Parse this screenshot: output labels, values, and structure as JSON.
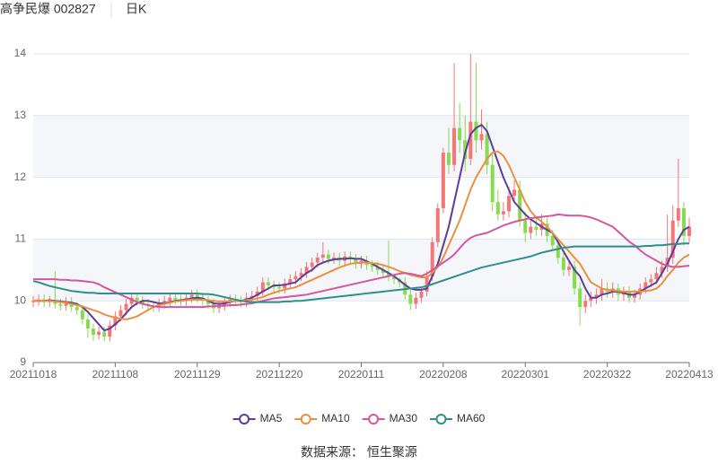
{
  "chart_data": {
    "type": "candlestick",
    "title": "高争民爆 002827",
    "period": "日K",
    "source": "数据来源： 恒生聚源",
    "categories": [
      "20211018",
      null,
      null,
      null,
      null,
      null,
      null,
      null,
      null,
      null,
      null,
      null,
      null,
      null,
      null,
      "20211108",
      null,
      null,
      null,
      null,
      null,
      null,
      null,
      null,
      null,
      null,
      null,
      null,
      null,
      null,
      "20211129",
      null,
      null,
      null,
      null,
      null,
      null,
      null,
      null,
      null,
      null,
      null,
      null,
      null,
      null,
      "20211220",
      null,
      null,
      null,
      null,
      null,
      null,
      null,
      null,
      null,
      null,
      null,
      null,
      null,
      null,
      "20220111",
      null,
      null,
      null,
      null,
      null,
      null,
      null,
      null,
      null,
      null,
      null,
      null,
      null,
      null,
      "20220208",
      null,
      null,
      null,
      null,
      null,
      null,
      null,
      null,
      null,
      null,
      null,
      null,
      null,
      null,
      "20220301",
      null,
      null,
      null,
      null,
      null,
      null,
      null,
      null,
      null,
      null,
      null,
      null,
      null,
      null,
      "20220322",
      null,
      null,
      null,
      null,
      null,
      null,
      null,
      null,
      null,
      null,
      null,
      null,
      null,
      null,
      "20220413"
    ],
    "open": [
      9.98,
      10.0,
      10.02,
      9.98,
      10.0,
      9.95,
      9.92,
      9.98,
      9.9,
      9.85,
      9.7,
      9.55,
      9.45,
      9.5,
      9.42,
      9.6,
      9.75,
      9.85,
      9.95,
      10.05,
      10.0,
      9.95,
      9.92,
      9.9,
      9.95,
      10.0,
      10.05,
      10.02,
      10.0,
      10.05,
      10.1,
      10.05,
      10.0,
      9.95,
      9.88,
      9.92,
      9.98,
      10.02,
      10.0,
      9.98,
      10.05,
      10.08,
      10.15,
      10.3,
      10.25,
      10.22,
      10.2,
      10.28,
      10.35,
      10.4,
      10.45,
      10.55,
      10.62,
      10.7,
      10.75,
      10.68,
      10.7,
      10.65,
      10.72,
      10.68,
      10.6,
      10.65,
      10.58,
      10.55,
      10.5,
      10.45,
      10.4,
      10.35,
      10.3,
      10.1,
      9.95,
      10.05,
      10.15,
      10.4,
      10.95,
      11.5,
      12.4,
      12.2,
      12.8,
      12.6,
      12.3,
      12.9,
      12.6,
      12.7,
      12.2,
      11.6,
      11.4,
      11.45,
      11.7,
      11.8,
      11.3,
      11.1,
      11.2,
      11.15,
      11.25,
      11.05,
      10.9,
      10.7,
      10.5,
      10.55,
      10.2,
      9.9,
      10.0,
      10.05,
      10.1,
      10.2,
      10.15,
      10.2,
      10.1,
      10.15,
      10.05,
      10.1,
      10.2,
      10.3,
      10.35,
      10.45,
      10.55,
      10.7,
      11.3,
      11.5,
      11.05
    ],
    "high": [
      10.08,
      10.1,
      10.1,
      10.08,
      10.48,
      10.03,
      10.06,
      10.06,
      9.98,
      9.93,
      9.78,
      9.63,
      9.58,
      9.58,
      9.68,
      9.83,
      9.93,
      10.03,
      10.13,
      10.13,
      10.08,
      10.03,
      10.0,
      10.03,
      10.08,
      10.13,
      10.13,
      10.1,
      10.13,
      10.18,
      10.18,
      10.13,
      10.08,
      10.03,
      10.0,
      10.06,
      10.1,
      10.1,
      10.08,
      10.13,
      10.16,
      10.23,
      10.38,
      10.38,
      10.33,
      10.3,
      10.36,
      10.43,
      10.48,
      10.53,
      10.63,
      10.7,
      10.78,
      10.95,
      10.83,
      10.78,
      10.78,
      10.8,
      10.8,
      10.76,
      10.73,
      10.73,
      10.66,
      10.63,
      10.58,
      10.98,
      10.43,
      10.38,
      10.38,
      10.18,
      10.13,
      10.23,
      10.48,
      11.03,
      11.58,
      12.48,
      12.8,
      13.85,
      13.2,
      13.0,
      14.0,
      13.85,
      13.1,
      12.9,
      12.4,
      11.8,
      11.6,
      11.85,
      11.95,
      11.95,
      11.45,
      11.35,
      11.35,
      11.4,
      11.35,
      11.15,
      11.0,
      10.8,
      10.65,
      10.65,
      10.3,
      10.1,
      10.15,
      10.2,
      10.35,
      10.3,
      10.3,
      10.28,
      10.23,
      10.23,
      10.18,
      10.28,
      10.38,
      10.43,
      10.55,
      10.65,
      11.4,
      11.55,
      12.3,
      11.6,
      11.35
    ],
    "low": [
      9.9,
      9.92,
      9.9,
      9.9,
      9.87,
      9.84,
      9.84,
      9.82,
      9.77,
      9.62,
      9.4,
      9.35,
      9.37,
      9.34,
      9.34,
      9.52,
      9.67,
      9.77,
      9.87,
      9.92,
      9.87,
      9.84,
      9.82,
      9.82,
      9.87,
      9.92,
      9.94,
      9.92,
      9.92,
      9.97,
      9.97,
      9.92,
      9.87,
      9.8,
      9.8,
      9.84,
      9.9,
      9.92,
      9.9,
      9.9,
      9.97,
      10.0,
      10.07,
      10.17,
      10.14,
      10.12,
      10.12,
      10.2,
      10.27,
      10.32,
      10.37,
      10.47,
      10.54,
      10.62,
      10.6,
      10.6,
      10.57,
      10.57,
      10.6,
      10.52,
      10.52,
      10.5,
      10.47,
      10.42,
      10.37,
      10.32,
      10.27,
      10.22,
      10.02,
      9.85,
      9.87,
      9.97,
      10.07,
      10.32,
      10.87,
      11.42,
      12.05,
      12.1,
      12.4,
      12.1,
      12.2,
      12.4,
      12.45,
      12.05,
      11.45,
      11.3,
      11.3,
      11.35,
      11.6,
      11.2,
      10.95,
      11.0,
      11.05,
      11.05,
      10.95,
      10.8,
      10.6,
      10.4,
      10.4,
      10.1,
      9.6,
      9.8,
      9.9,
      9.95,
      10.0,
      10.05,
      10.05,
      10.0,
      10.0,
      9.97,
      9.97,
      10.02,
      10.12,
      10.22,
      10.27,
      10.37,
      10.47,
      10.6,
      11.2,
      10.9,
      10.95
    ],
    "close": [
      10.0,
      10.02,
      9.98,
      10.0,
      9.95,
      9.92,
      9.98,
      9.9,
      9.85,
      9.7,
      9.55,
      9.45,
      9.5,
      9.42,
      9.6,
      9.75,
      9.85,
      9.95,
      10.05,
      10.0,
      9.95,
      9.92,
      9.9,
      9.95,
      10.0,
      10.05,
      10.02,
      10.0,
      10.05,
      10.1,
      10.05,
      10.0,
      9.95,
      9.88,
      9.92,
      9.98,
      10.02,
      10.0,
      9.98,
      10.05,
      10.08,
      10.15,
      10.3,
      10.25,
      10.22,
      10.2,
      10.28,
      10.35,
      10.4,
      10.45,
      10.55,
      10.62,
      10.7,
      10.75,
      10.68,
      10.7,
      10.65,
      10.72,
      10.68,
      10.6,
      10.65,
      10.58,
      10.55,
      10.5,
      10.45,
      10.4,
      10.35,
      10.3,
      10.1,
      9.95,
      10.05,
      10.15,
      10.4,
      10.95,
      11.5,
      12.4,
      12.2,
      12.8,
      12.6,
      12.3,
      12.9,
      12.6,
      12.7,
      12.2,
      11.6,
      11.4,
      11.45,
      11.7,
      11.8,
      11.3,
      11.1,
      11.2,
      11.15,
      11.25,
      11.05,
      10.9,
      10.7,
      10.5,
      10.55,
      10.2,
      9.9,
      10.0,
      10.05,
      10.1,
      10.2,
      10.15,
      10.2,
      10.1,
      10.15,
      10.05,
      10.1,
      10.2,
      10.3,
      10.35,
      10.45,
      10.55,
      10.7,
      11.3,
      11.5,
      11.05,
      11.2
    ],
    "up_color": "#f47676",
    "down_color": "#86dc4e",
    "series": [
      {
        "name": "MA5",
        "color": "#5c3d99",
        "values": [
          10.0,
          10.0,
          10.0,
          10.01,
          10.0,
          9.99,
          9.98,
          9.97,
          9.95,
          9.9,
          9.82,
          9.72,
          9.62,
          9.52,
          9.55,
          9.62,
          9.7,
          9.8,
          9.9,
          9.96,
          10.0,
          10.0,
          9.98,
          9.96,
          9.96,
          9.98,
          10.0,
          10.01,
          10.02,
          10.04,
          10.05,
          10.04,
          10.0,
          9.96,
          9.95,
          9.96,
          9.98,
          10.0,
          10.0,
          10.02,
          10.05,
          10.1,
          10.15,
          10.2,
          10.25,
          10.25,
          10.26,
          10.28,
          10.3,
          10.38,
          10.45,
          10.5,
          10.58,
          10.62,
          10.65,
          10.67,
          10.68,
          10.68,
          10.69,
          10.68,
          10.68,
          10.64,
          10.6,
          10.55,
          10.5,
          10.45,
          10.4,
          10.33,
          10.26,
          10.2,
          10.18,
          10.18,
          10.2,
          10.4,
          10.6,
          10.9,
          11.2,
          11.6,
          12.0,
          12.4,
          12.7,
          12.8,
          12.85,
          12.75,
          12.5,
          12.25,
          12.0,
          11.8,
          11.6,
          11.5,
          11.4,
          11.32,
          11.26,
          11.2,
          11.15,
          11.1,
          10.95,
          10.8,
          10.65,
          10.5,
          10.4,
          10.2,
          10.05,
          10.05,
          10.1,
          10.12,
          10.15,
          10.15,
          10.13,
          10.1,
          10.1,
          10.15,
          10.2,
          10.25,
          10.3,
          10.45,
          10.6,
          10.8,
          11.0,
          11.15,
          11.2
        ]
      },
      {
        "name": "MA10",
        "color": "#e8913f",
        "values": [
          10.0,
          10.0,
          10.0,
          10.0,
          9.99,
          9.98,
          9.97,
          9.95,
          9.93,
          9.91,
          9.88,
          9.85,
          9.82,
          9.78,
          9.75,
          9.73,
          9.71,
          9.7,
          9.72,
          9.75,
          9.8,
          9.85,
          9.9,
          9.93,
          9.95,
          9.97,
          9.99,
          10.0,
          10.01,
          10.02,
          10.02,
          10.02,
          10.01,
          10.0,
          9.99,
          9.99,
          9.99,
          10.0,
          10.0,
          10.01,
          10.02,
          10.04,
          10.06,
          10.1,
          10.13,
          10.16,
          10.18,
          10.2,
          10.22,
          10.26,
          10.3,
          10.34,
          10.38,
          10.42,
          10.46,
          10.5,
          10.54,
          10.57,
          10.6,
          10.61,
          10.62,
          10.62,
          10.61,
          10.6,
          10.58,
          10.55,
          10.52,
          10.48,
          10.45,
          10.42,
          10.4,
          10.38,
          10.38,
          10.45,
          10.55,
          10.7,
          10.9,
          11.1,
          11.3,
          11.55,
          11.8,
          12.0,
          12.15,
          12.3,
          12.4,
          12.42,
          12.35,
          12.2,
          12.0,
          11.8,
          11.6,
          11.45,
          11.35,
          11.28,
          11.2,
          11.1,
          11.0,
          10.9,
          10.8,
          10.7,
          10.6,
          10.45,
          10.3,
          10.25,
          10.2,
          10.18,
          10.17,
          10.16,
          10.15,
          10.15,
          10.15,
          10.15,
          10.16,
          10.17,
          10.2,
          10.28,
          10.4,
          10.5,
          10.62,
          10.7,
          10.75
        ]
      },
      {
        "name": "MA30",
        "color": "#d6559f",
        "values": [
          10.35,
          10.35,
          10.35,
          10.35,
          10.35,
          10.34,
          10.34,
          10.33,
          10.33,
          10.32,
          10.31,
          10.3,
          10.27,
          10.22,
          10.18,
          10.14,
          10.1,
          10.06,
          10.02,
          9.98,
          9.95,
          9.93,
          9.91,
          9.9,
          9.9,
          9.9,
          9.9,
          9.9,
          9.9,
          9.9,
          9.9,
          9.9,
          9.91,
          9.91,
          9.92,
          9.92,
          9.93,
          9.93,
          9.94,
          9.95,
          9.96,
          9.98,
          10.0,
          10.02,
          10.04,
          10.05,
          10.06,
          10.07,
          10.08,
          10.09,
          10.1,
          10.12,
          10.14,
          10.16,
          10.18,
          10.2,
          10.22,
          10.24,
          10.26,
          10.28,
          10.3,
          10.32,
          10.34,
          10.36,
          10.38,
          10.4,
          10.42,
          10.44,
          10.45,
          10.44,
          10.42,
          10.4,
          10.44,
          10.5,
          10.56,
          10.62,
          10.68,
          10.75,
          10.85,
          10.95,
          11.02,
          11.06,
          11.08,
          11.1,
          11.14,
          11.18,
          11.22,
          11.25,
          11.28,
          11.3,
          11.32,
          11.34,
          11.35,
          11.36,
          11.37,
          11.38,
          11.4,
          11.39,
          11.38,
          11.38,
          11.38,
          11.37,
          11.35,
          11.32,
          11.28,
          11.24,
          11.2,
          11.12,
          11.04,
          10.96,
          10.9,
          10.82,
          10.75,
          10.7,
          10.65,
          10.6,
          10.57,
          10.55,
          10.55,
          10.56,
          10.57
        ]
      },
      {
        "name": "MA60",
        "color": "#2f8f8a",
        "values": [
          10.32,
          10.3,
          10.27,
          10.24,
          10.22,
          10.2,
          10.18,
          10.16,
          10.15,
          10.14,
          10.13,
          10.13,
          10.12,
          10.12,
          10.12,
          10.12,
          10.12,
          10.12,
          10.12,
          10.12,
          10.12,
          10.12,
          10.12,
          10.12,
          10.12,
          10.12,
          10.12,
          10.12,
          10.12,
          10.12,
          10.12,
          10.11,
          10.11,
          10.1,
          10.08,
          10.06,
          10.04,
          10.02,
          10.0,
          9.99,
          9.98,
          9.98,
          9.98,
          9.98,
          9.98,
          9.98,
          9.99,
          9.99,
          10.0,
          10.0,
          10.01,
          10.02,
          10.03,
          10.04,
          10.05,
          10.06,
          10.07,
          10.08,
          10.09,
          10.1,
          10.11,
          10.12,
          10.13,
          10.14,
          10.15,
          10.16,
          10.17,
          10.18,
          10.19,
          10.2,
          10.21,
          10.22,
          10.24,
          10.27,
          10.3,
          10.33,
          10.36,
          10.39,
          10.42,
          10.45,
          10.48,
          10.51,
          10.54,
          10.56,
          10.58,
          10.6,
          10.62,
          10.64,
          10.66,
          10.68,
          10.7,
          10.72,
          10.75,
          10.78,
          10.8,
          10.82,
          10.84,
          10.86,
          10.87,
          10.88,
          10.88,
          10.88,
          10.88,
          10.88,
          10.88,
          10.88,
          10.88,
          10.88,
          10.88,
          10.88,
          10.88,
          10.88,
          10.89,
          10.89,
          10.9,
          10.9,
          10.91,
          10.92,
          10.92,
          10.93,
          10.93
        ]
      }
    ],
    "ylim": [
      9,
      14
    ],
    "yticks": [
      9,
      10,
      11,
      12,
      13,
      14
    ],
    "grid": true,
    "split_area": true,
    "legend": "bottom"
  }
}
